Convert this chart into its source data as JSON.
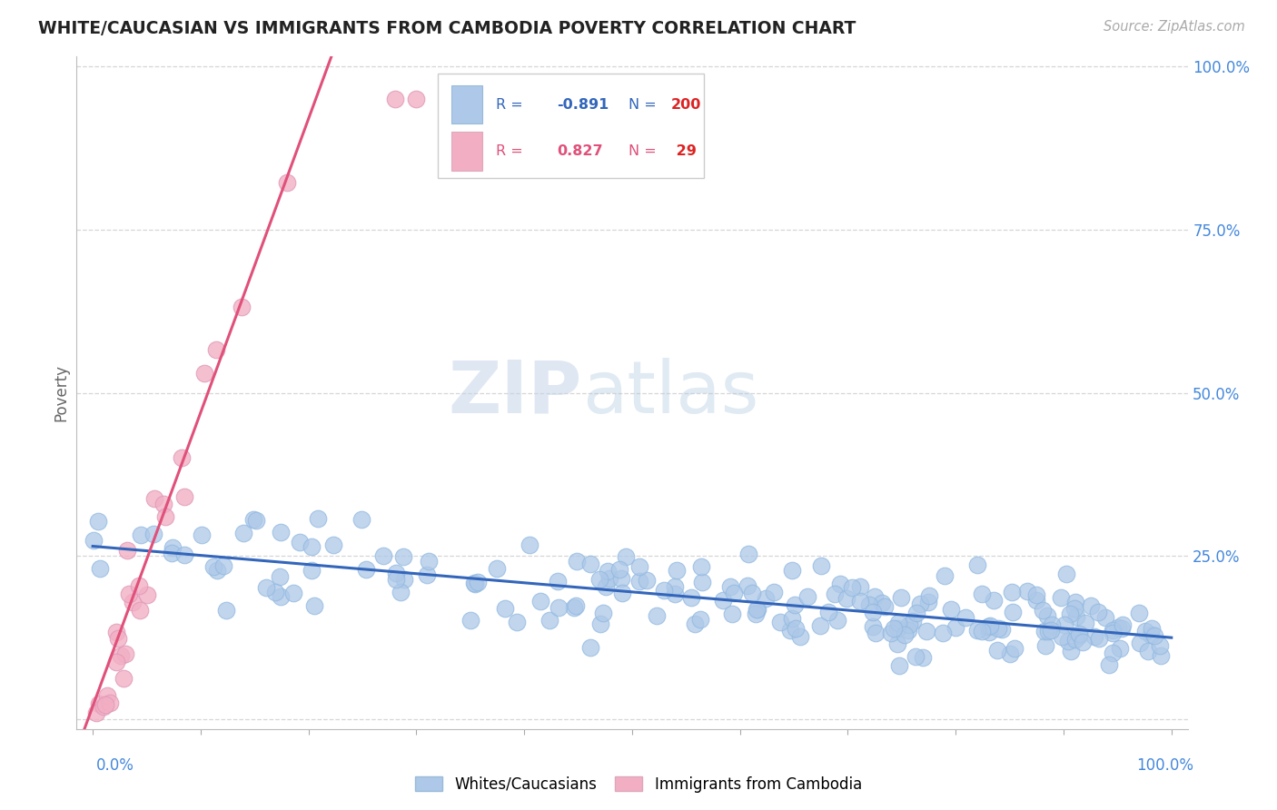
{
  "title": "WHITE/CAUCASIAN VS IMMIGRANTS FROM CAMBODIA POVERTY CORRELATION CHART",
  "source_text": "Source: ZipAtlas.com",
  "ylabel": "Poverty",
  "watermark_zip": "ZIP",
  "watermark_atlas": "atlas",
  "legend_blue_r": "-0.891",
  "legend_blue_n": "200",
  "legend_pink_r": "0.827",
  "legend_pink_n": "29",
  "legend_label_blue": "Whites/Caucasians",
  "legend_label_pink": "Immigrants from Cambodia",
  "blue_color": "#adc8e8",
  "pink_color": "#f2afc4",
  "blue_line_color": "#3366bb",
  "pink_line_color": "#e0507a",
  "blue_r_color": "#3366bb",
  "pink_r_color": "#e0507a",
  "n_color": "#dd2222",
  "right_axis_color": "#4488dd",
  "bottom_axis_color": "#4488dd",
  "background_color": "#ffffff",
  "grid_color": "#cccccc",
  "title_color": "#222222",
  "source_color": "#aaaaaa",
  "ylabel_color": "#666666",
  "blue_n": 200,
  "pink_n": 29,
  "blue_seed": 99,
  "pink_seed": 77
}
